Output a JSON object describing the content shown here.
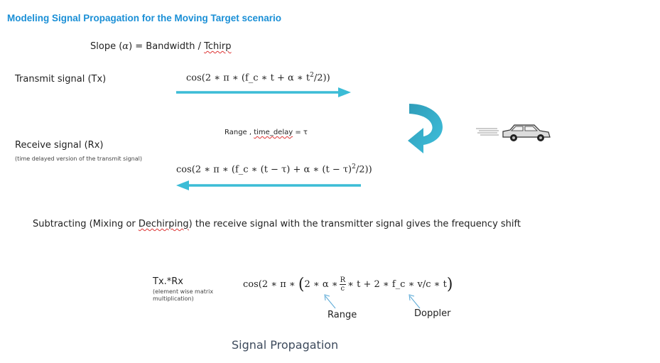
{
  "title": "Modeling Signal Propagation for the Moving Target scenario",
  "slope": {
    "prefix": "Slope (",
    "alpha": "α",
    "suffix": ") = Bandwidth / ",
    "tchirp": "Tchirp"
  },
  "tx": {
    "label": "Transmit signal (Tx)",
    "formula_a": "cos(2 ∗ π ∗ (f_c ∗ t +  α ∗ t",
    "formula_sup": "2",
    "formula_b": "/2))"
  },
  "range_delay": {
    "prefix": "Range , ",
    "underlined": "time_delay",
    "suffix": " = τ"
  },
  "rx": {
    "label": "Receive signal (Rx)",
    "sublabel": "(time delayed version of the transmit signal)",
    "formula_a": "cos(2 ∗ π ∗ (f_c ∗ (t − τ) +  α ∗ (t − τ)",
    "formula_sup": "2",
    "formula_b": "/2))"
  },
  "subtract": {
    "prefix": "Subtracting (Mixing or ",
    "underlined": "Dechirping",
    "suffix": ") the receive signal with the transmitter signal gives the frequency shift"
  },
  "mix": {
    "label": "Tx.*Rx",
    "sublabel_1": "(element wise matrix",
    "sublabel_2": "multiplication)",
    "formula_a": "cos(2 ∗ π ∗ ",
    "paren_open": "(",
    "formula_b": "2 ∗ α  ∗",
    "frac_num": "R",
    "frac_den": "c",
    "formula_c": "∗ t  + 2 ∗ f_c ∗ v/c ∗ t",
    "paren_close": ")"
  },
  "annotations": {
    "range": "Range",
    "doppler": "Doppler"
  },
  "caption": "Signal Propagation",
  "icons": {
    "car": "car-icon",
    "curved_arrow": "curved-arrow-icon"
  },
  "colors": {
    "title": "#1a8fd6",
    "arrow": "#3bbcd6",
    "curved_arrow": "#2aa3bf",
    "annotation_arrow": "#5aa9d6"
  }
}
